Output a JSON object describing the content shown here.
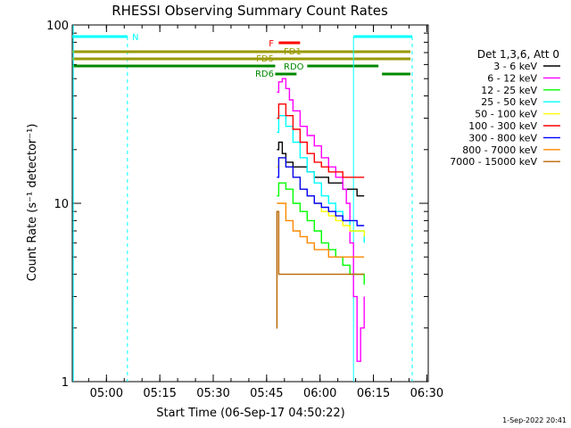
{
  "chart_data": {
    "type": "line",
    "title": "RHESSI Observing Summary Count Rates",
    "xlabel": "Start Time (06-Sep-17 04:50:22)",
    "ylabel": "Count Rate (s⁻¹ detector⁻¹)",
    "x_unit": "minutes after 04:50:22",
    "xlim": [
      0,
      100
    ],
    "ylim": [
      1,
      100
    ],
    "y_scale": "log",
    "x_ticks": [
      {
        "value": 9.6,
        "label": "05:00"
      },
      {
        "value": 24.6,
        "label": "05:15"
      },
      {
        "value": 39.6,
        "label": "05:30"
      },
      {
        "value": 54.6,
        "label": "05:45"
      },
      {
        "value": 69.6,
        "label": "06:00"
      },
      {
        "value": 84.6,
        "label": "06:15"
      },
      {
        "value": 99.6,
        "label": "06:30"
      }
    ],
    "y_ticks": [
      {
        "value": 1,
        "label": "1"
      },
      {
        "value": 10,
        "label": "10"
      },
      {
        "value": 100,
        "label": "100"
      }
    ],
    "timestamp": "1-Sep-2022 20:41",
    "legend": {
      "title": "Det 1,3,6, Att 0",
      "placement": "right"
    },
    "series": [
      {
        "name": "3 - 6 keV",
        "color": "#000000",
        "x": [
          57.5,
          58,
          59,
          60,
          62,
          64,
          66,
          68,
          70,
          72,
          74,
          76,
          78,
          80,
          82
        ],
        "y": [
          20,
          22,
          19,
          17,
          16,
          16,
          15,
          14,
          14,
          13,
          13,
          12,
          12,
          11,
          11
        ]
      },
      {
        "name": "6 - 12 keV",
        "color": "#ff00ff",
        "x": [
          57.5,
          58,
          59,
          60,
          61,
          62,
          64,
          66,
          68,
          70,
          72,
          74,
          76,
          77,
          78,
          79,
          80,
          81,
          82
        ],
        "y": [
          42,
          48,
          50,
          44,
          38,
          33,
          27,
          24,
          21,
          18,
          16,
          14,
          12,
          10,
          6,
          3,
          1.3,
          2,
          3
        ]
      },
      {
        "name": "12 - 25 keV",
        "color": "#00ff00",
        "x": [
          57.5,
          58,
          60,
          62,
          64,
          66,
          68,
          70,
          72,
          74,
          76,
          78,
          80,
          82
        ],
        "y": [
          11,
          13,
          12,
          10,
          9,
          8,
          7,
          6,
          5.5,
          5,
          4.5,
          4,
          4,
          3.5
        ]
      },
      {
        "name": "25 - 50 keV",
        "color": "#00ffff",
        "x": [
          57.5,
          58,
          60,
          62,
          64,
          66,
          68,
          70,
          72,
          74,
          76,
          78,
          80,
          82
        ],
        "y": [
          25,
          31,
          27,
          22,
          18,
          15,
          13,
          11,
          10,
          9,
          8,
          7,
          7,
          6
        ]
      },
      {
        "name": "50 - 100 keV",
        "color": "#ffff00",
        "x": [
          57.5,
          58,
          60,
          62,
          64,
          66,
          68,
          70,
          72,
          74,
          76,
          78,
          80,
          82
        ],
        "y": [
          16,
          18,
          16,
          14,
          12,
          11,
          10,
          9,
          8.5,
          8,
          7.5,
          7,
          7,
          6.5
        ]
      },
      {
        "name": "100 - 300 keV",
        "color": "#ff0000",
        "x": [
          57.5,
          58,
          60,
          62,
          64,
          66,
          68,
          70,
          72,
          74,
          76,
          78,
          80,
          82
        ],
        "y": [
          30,
          36,
          31,
          26,
          22,
          19,
          17,
          16,
          15,
          15,
          14,
          14,
          14,
          14
        ]
      },
      {
        "name": "300 - 800 keV",
        "color": "#0000ff",
        "x": [
          57.5,
          58,
          60,
          62,
          64,
          66,
          68,
          70,
          72,
          74,
          76,
          78,
          80,
          82
        ],
        "y": [
          14,
          18,
          16,
          14,
          12,
          11,
          10,
          9.5,
          9,
          8.5,
          8,
          8,
          7.5,
          7.5
        ]
      },
      {
        "name": "800 - 7000 keV",
        "color": "#ff8800",
        "x": [
          57.5,
          58,
          60,
          62,
          64,
          66,
          68,
          70,
          72,
          74,
          76,
          78,
          80,
          82
        ],
        "y": [
          10,
          10,
          8,
          7,
          6.5,
          6,
          5.5,
          5.5,
          5,
          5,
          5,
          5,
          5,
          5
        ]
      },
      {
        "name": "7000 - 15000 keV",
        "color": "#bb6600",
        "x": [
          57.3,
          57.5,
          58,
          60,
          62,
          64,
          66,
          68,
          70,
          72,
          74,
          76,
          78,
          80,
          82
        ],
        "y": [
          2,
          9,
          4,
          4,
          4,
          4,
          4,
          4,
          4,
          4,
          4,
          4,
          4,
          4,
          4
        ]
      }
    ],
    "flag_lines": [
      {
        "label": "N",
        "color": "#00ffff",
        "segments": [
          [
            0,
            15.5
          ],
          [
            79,
            95.5
          ]
        ],
        "dashed_at": [
          15.5,
          95.5
        ]
      },
      {
        "label": "F",
        "color": "#ff0000",
        "segments": [
          [
            58,
            64
          ]
        ]
      },
      {
        "label": "FD1",
        "color": "#999900",
        "segments": [
          [
            0,
            58
          ],
          [
            58,
            95
          ]
        ]
      },
      {
        "label": "FD5",
        "color": "#999900",
        "segments": [
          [
            0,
            95
          ]
        ]
      },
      {
        "label": "RDO",
        "color": "#008800",
        "segments": [
          [
            0,
            57
          ],
          [
            66,
            86
          ]
        ]
      },
      {
        "label": "RD6",
        "color": "#008800",
        "segments": [
          [
            57,
            63
          ],
          [
            87,
            95
          ]
        ]
      }
    ]
  }
}
